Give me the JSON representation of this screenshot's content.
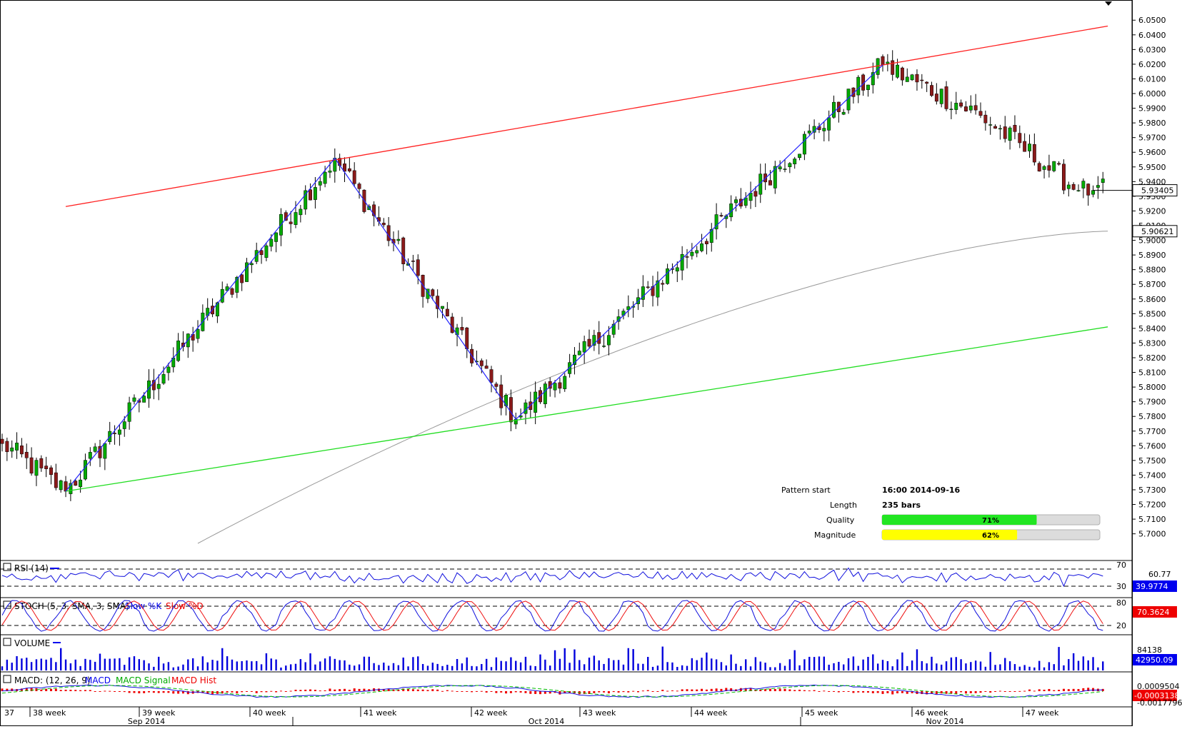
{
  "chart_data": {
    "type": "candlestick",
    "price_axis": {
      "ticks": [
        "6.0500",
        "6.0400",
        "6.0300",
        "6.0200",
        "6.0100",
        "6.0000",
        "5.9900",
        "5.9800",
        "5.9700",
        "5.9600",
        "5.9500",
        "5.9400",
        "5.9300",
        "5.9200",
        "5.9100",
        "5.9000",
        "5.8900",
        "5.8800",
        "5.8700",
        "5.8600",
        "5.8500",
        "5.8400",
        "5.8300",
        "5.8200",
        "5.8100",
        "5.8000",
        "5.7900",
        "5.7800",
        "5.7700",
        "5.7600",
        "5.7500",
        "5.7400",
        "5.7300",
        "5.7200",
        "5.7100",
        "5.7000"
      ],
      "ylim": [
        5.6935,
        6.0545
      ],
      "current_price": "5.93405",
      "ma_price": "5.90621"
    },
    "time_axis": {
      "week_labels": [
        "37",
        "38 week",
        "39 week",
        "40 week",
        "41 week",
        "42 week",
        "43 week",
        "44 week",
        "45 week",
        "46 week",
        "47 week"
      ],
      "month_labels": [
        "Sep 2014",
        "Oct 2014",
        "Nov 2014"
      ]
    },
    "anchors": [
      {
        "bar": 0,
        "price": 5.7615
      },
      {
        "bar": 13,
        "price": 5.729
      },
      {
        "bar": 68,
        "price": 5.956
      },
      {
        "bar": 105,
        "price": 5.778
      },
      {
        "bar": 180,
        "price": 6.0195
      },
      {
        "bar": 200,
        "price": 5.985
      },
      {
        "bar": 220,
        "price": 5.934
      },
      {
        "bar": 223,
        "price": 5.934
      }
    ],
    "pattern_lines": {
      "resistance": {
        "from": {
          "bar": 13,
          "price": 5.923
        },
        "to": {
          "bar": 226,
          "price": 6.046
        }
      },
      "support": {
        "from": {
          "bar": 13,
          "price": 5.729
        },
        "to": {
          "bar": 226,
          "price": 5.841
        }
      },
      "zigzag": [
        {
          "bar": 13,
          "price": 5.729
        },
        {
          "bar": 68,
          "price": 5.956
        },
        {
          "bar": 105,
          "price": 5.778
        },
        {
          "bar": 180,
          "price": 6.0195
        }
      ]
    },
    "moving_average": {
      "start": {
        "bar": 40,
        "price": 5.6935
      },
      "end": {
        "bar": 226,
        "price": 5.9062
      }
    },
    "pattern_info": {
      "pattern_start_label": "Pattern start",
      "pattern_start_value": "16:00 2014-09-16",
      "length_label": "Length",
      "length_value": "235 bars",
      "quality_label": "Quality",
      "quality_value": "71%",
      "quality_fraction": 0.71,
      "magnitude_label": "Magnitude",
      "magnitude_value": "62%",
      "magnitude_fraction": 0.62
    },
    "indicators": {
      "rsi": {
        "label": "RSI (14)",
        "level_high": "70",
        "level_low": "30",
        "max_label": "60.77",
        "value": "39.9774"
      },
      "stoch": {
        "label_main": "STOCH (5, 3, SMA, 3, SMA)",
        "label_k": "Slow %K",
        "label_d": "Slow %D",
        "level_high": "80",
        "level_low": "20",
        "value": "70.3624"
      },
      "volume": {
        "label": "VOLUME",
        "max_label": "84138",
        "value": "42950.09"
      },
      "macd": {
        "label_main": "MACD: (12, 26, 9)",
        "label_macd": "MACD",
        "label_signal": "MACD Signal",
        "label_hist": "MACD Hist",
        "top_label": "0.0009504",
        "value": "-0.0003138",
        "bottom_label": "-0.0017796"
      }
    },
    "colors": {
      "up_candle": "#00aa00",
      "down_candle": "#8b1a1a",
      "resistance": "#ff2020",
      "support": "#20dd20",
      "zigzag": "#2222ff",
      "moving_average": "#999999",
      "quality_bar": "#22e622",
      "magnitude_bar": "#ffff00",
      "value_blue": "#0000ee",
      "value_red": "#ee0000"
    }
  }
}
